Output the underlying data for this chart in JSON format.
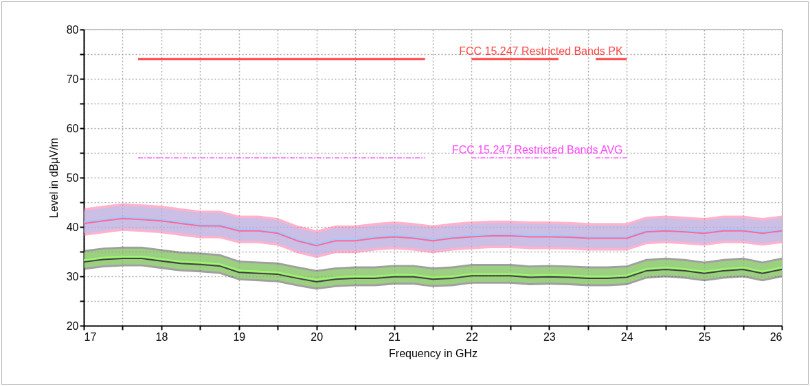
{
  "chart_data": {
    "type": "line",
    "xlabel": "Frequency in GHz",
    "ylabel": "Level in dBµV/m",
    "x": [
      17,
      17.25,
      17.5,
      17.75,
      18,
      18.25,
      18.5,
      18.75,
      19,
      19.25,
      19.5,
      19.75,
      20,
      20.25,
      20.5,
      20.75,
      21,
      21.25,
      21.5,
      21.75,
      22,
      22.25,
      22.5,
      22.75,
      23,
      23.25,
      23.5,
      23.75,
      24,
      24.25,
      24.5,
      24.75,
      25,
      25.25,
      25.5,
      25.75,
      26
    ],
    "xlim": [
      17,
      26
    ],
    "xticks": [
      17,
      {
        "value": 17.5,
        "label": null
      },
      18,
      {
        "value": 18.5,
        "label": null
      },
      19,
      {
        "value": 19.5,
        "label": null
      },
      20,
      {
        "value": 20.5,
        "label": null
      },
      21,
      {
        "value": 21.5,
        "label": null
      },
      22,
      {
        "value": 22.5,
        "label": null
      },
      23,
      {
        "value": 23.5,
        "label": null
      },
      24,
      {
        "value": 24.5,
        "label": null
      },
      25,
      {
        "value": 25.5,
        "label": null
      },
      26
    ],
    "ylim": [
      20,
      80
    ],
    "yticks": [
      20,
      {
        "value": 25,
        "label": null
      },
      30,
      {
        "value": 35,
        "label": null
      },
      40,
      {
        "value": 45,
        "label": null
      },
      50,
      {
        "value": 55,
        "label": null
      },
      60,
      {
        "value": 65,
        "label": null
      },
      70,
      {
        "value": 75,
        "label": null
      },
      80
    ],
    "grid": true,
    "series": [
      {
        "color": "#ff6699",
        "values": [
          40.7,
          41.2,
          41.7,
          41.5,
          41.2,
          40.7,
          40.2,
          40.2,
          39.2,
          39.2,
          38.7,
          37.2,
          36.2,
          37.2,
          37.2,
          37.7,
          38,
          37.7,
          37.2,
          37.7,
          38,
          38.2,
          38.2,
          38,
          38,
          37.9,
          37.7,
          37.7,
          37.7,
          39,
          39.2,
          39,
          38.7,
          39.2,
          39.2,
          38.7,
          39.2
        ],
        "lower": [
          38.2,
          38.7,
          39.2,
          39,
          38.7,
          38.2,
          37.7,
          37.7,
          36.7,
          36.7,
          36.2,
          34.7,
          33.7,
          34.7,
          34.7,
          35.2,
          35.5,
          35.2,
          34.7,
          35.2,
          35.5,
          35.7,
          35.7,
          35.5,
          35.5,
          35.4,
          35.2,
          35.2,
          35.2,
          36.5,
          36.7,
          36.5,
          36.2,
          36.7,
          36.7,
          36.2,
          36.7
        ],
        "upper": [
          43.8,
          44.3,
          44.8,
          44.6,
          44.3,
          43.8,
          43.3,
          43.3,
          42.3,
          42.3,
          41.8,
          40.3,
          39.3,
          40.3,
          40.3,
          40.8,
          41.1,
          40.8,
          40.3,
          40.8,
          41.1,
          41.3,
          41.3,
          41.1,
          41.1,
          41,
          40.8,
          40.8,
          40.8,
          42.1,
          42.3,
          42.1,
          41.8,
          42.3,
          42.3,
          41.8,
          42.3
        ]
      },
      {
        "color": "#99ccff",
        "values": [
          41,
          41.5,
          42,
          41.8,
          41.5,
          41,
          40.5,
          40.5,
          39.5,
          39.5,
          39,
          37.5,
          36.5,
          37.5,
          37.5,
          38,
          38.3,
          38,
          37.5,
          38,
          38.3,
          38.5,
          38.5,
          38.3,
          38.3,
          38.2,
          38,
          38,
          38,
          39.3,
          39.5,
          39.3,
          39,
          39.5,
          39.5,
          39,
          39.5
        ],
        "lower": [
          38.7,
          39.2,
          39.7,
          39.5,
          39.2,
          38.7,
          38.2,
          38.2,
          37.2,
          37.2,
          36.7,
          35.2,
          34.2,
          35.2,
          35.2,
          35.7,
          36,
          35.7,
          35.2,
          35.7,
          36,
          36.2,
          36.2,
          36,
          36,
          35.9,
          35.7,
          35.7,
          35.7,
          37,
          37.2,
          37,
          36.7,
          37.2,
          37.2,
          36.7,
          37.2
        ],
        "upper": [
          43.3,
          43.8,
          44.3,
          44.1,
          43.8,
          43.3,
          42.8,
          42.8,
          41.8,
          41.8,
          41.3,
          39.8,
          38.8,
          39.8,
          39.8,
          40.3,
          40.6,
          40.3,
          39.8,
          40.3,
          40.6,
          40.8,
          40.8,
          40.6,
          40.6,
          40.5,
          40.3,
          40.3,
          40.3,
          41.6,
          41.8,
          41.6,
          41.3,
          41.8,
          41.8,
          41.3,
          41.8
        ]
      },
      {
        "color": "#404040",
        "values": [
          32.9,
          33.4,
          33.6,
          33.6,
          33.1,
          32.6,
          32.4,
          32.1,
          30.8,
          30.6,
          30.4,
          29.6,
          28.9,
          29.4,
          29.6,
          29.6,
          29.9,
          29.9,
          29.4,
          29.6,
          30.1,
          30.1,
          30.1,
          29.8,
          29.9,
          29.8,
          29.6,
          29.6,
          29.8,
          31.1,
          31.4,
          31.1,
          30.6,
          31.1,
          31.4,
          30.6,
          31.4
        ],
        "lower": [
          31.3,
          31.8,
          32,
          32,
          31.5,
          31,
          30.8,
          30.5,
          29.2,
          29,
          28.8,
          28,
          27.3,
          27.8,
          28,
          28,
          28.3,
          28.3,
          27.8,
          28,
          28.5,
          28.5,
          28.5,
          28.2,
          28.3,
          28.2,
          28,
          28,
          28.2,
          29.5,
          29.8,
          29.5,
          29,
          29.5,
          29.8,
          29,
          29.8
        ],
        "upper": [
          35.3,
          35.8,
          36,
          36,
          35.5,
          35,
          34.8,
          34.5,
          33.2,
          33,
          32.8,
          32,
          31.3,
          31.8,
          32,
          32,
          32.3,
          32.3,
          31.8,
          32,
          32.5,
          32.5,
          32.5,
          32.2,
          32.3,
          32.2,
          32,
          32,
          32.2,
          33.5,
          33.8,
          33.5,
          33,
          33.5,
          33.8,
          33,
          33.8
        ]
      },
      {
        "color": "#99ff66",
        "values": [
          33.3,
          33.8,
          34,
          34,
          33.5,
          33,
          32.8,
          32.5,
          31.2,
          31,
          30.8,
          30,
          29.3,
          29.8,
          30,
          30,
          30.3,
          30.3,
          29.8,
          30,
          30.5,
          30.5,
          30.5,
          30.2,
          30.3,
          30.2,
          30,
          30,
          30.2,
          31.5,
          31.8,
          31.5,
          31,
          31.5,
          31.8,
          31,
          31.8
        ],
        "lower": [
          31.7,
          32.2,
          32.4,
          32.4,
          31.9,
          31.4,
          31.2,
          30.9,
          29.6,
          29.4,
          29.2,
          28.4,
          27.7,
          28.2,
          28.4,
          28.4,
          28.7,
          28.7,
          28.2,
          28.4,
          28.9,
          28.9,
          28.9,
          28.6,
          28.7,
          28.6,
          28.4,
          28.4,
          28.6,
          29.9,
          30.2,
          29.9,
          29.4,
          29.9,
          30.2,
          29.4,
          30.2
        ],
        "upper": [
          34.9,
          35.4,
          35.6,
          35.6,
          35.1,
          34.6,
          34.4,
          34.1,
          32.8,
          32.6,
          32.4,
          31.6,
          30.9,
          31.4,
          31.6,
          31.6,
          31.9,
          31.9,
          31.4,
          31.6,
          32.1,
          32.1,
          32.1,
          31.8,
          31.9,
          31.8,
          31.6,
          31.6,
          31.8,
          33.1,
          33.4,
          33.1,
          32.6,
          33.1,
          33.4,
          32.6,
          33.4
        ]
      },
      {
        "type": "line",
        "color": "#ff4444",
        "line_style": "solid",
        "x": [
          17.7,
          21.4,
          21.7,
          22,
          23.12,
          23.35,
          23.6,
          24
        ],
        "values": [
          74,
          74,
          null,
          74,
          74,
          null,
          74,
          74
        ]
      },
      {
        "type": "line",
        "color": "#ff44ff",
        "line_style": "dashed",
        "x": [
          17.7,
          21.4,
          21.7,
          22,
          23.12,
          23.35,
          23.6,
          24
        ],
        "values": [
          54,
          54,
          null,
          54,
          54,
          null,
          54,
          54
        ]
      }
    ],
    "annotations": [
      {
        "text": "FCC 15.247 Restricted Bands PK",
        "x": 23.95,
        "y": 74
      },
      {
        "text": "FCC 15.247 Restricted Bands AVG",
        "x": 23.95,
        "y": 54
      }
    ]
  }
}
